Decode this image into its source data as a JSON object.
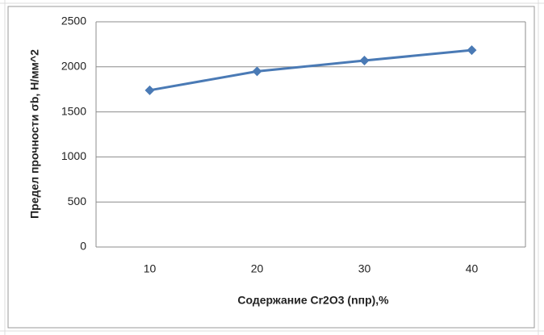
{
  "chart_data": {
    "type": "line",
    "x_label": "Содержание Cr2O3 (nпр),%",
    "y_label": "Предел прочности σb, Н/мм^2",
    "categories": [
      "10",
      "20",
      "30",
      "40"
    ],
    "series": [
      {
        "name": "Предел прочности",
        "color": "#4a7ab5",
        "values": [
          1740,
          1950,
          2070,
          2185
        ]
      }
    ],
    "ylim": [
      0,
      2500
    ],
    "yticks": [
      0,
      500,
      1000,
      1500,
      2000,
      2500
    ],
    "grid": true,
    "legend": false
  }
}
